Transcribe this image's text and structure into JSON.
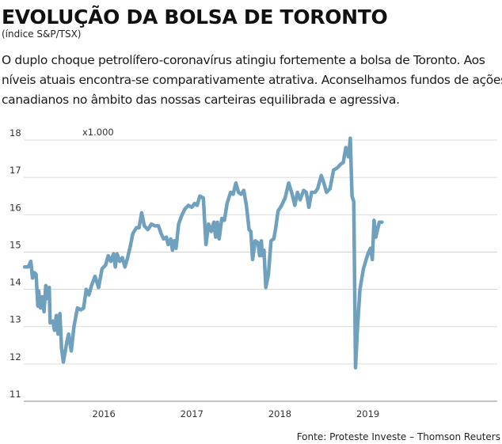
{
  "header": {
    "title": "EVOLUÇÃO DA BOLSA DE TORONTO",
    "subtitle": "(índice S&P/TSX)"
  },
  "lead": {
    "lines": [
      "O duplo choque petrolífero-coronavírus atingiu fortemente a bolsa de Toronto. Aos",
      "níveis atuais encontra-se comparativamente atrativa. Aconselhamos fundos de ações",
      "canadianos no âmbito das nossas carteiras equilibrada e agressiva."
    ]
  },
  "footer": {
    "source": "Fonte: Proteste Investe – Thomson Reuters"
  },
  "colors": {
    "line": "#6fa0be",
    "grid": "#cfcfcf",
    "axis": "#8a8a8a"
  },
  "chart_data": {
    "type": "line",
    "unit_label": "x1.000",
    "ylim": [
      11,
      18
    ],
    "yticks": [
      11,
      12,
      13,
      14,
      15,
      16,
      17,
      18
    ],
    "xlim": [
      2015.09,
      2020.47
    ],
    "xticks": [
      {
        "label": "2016",
        "pos": 2016.0
      },
      {
        "label": "2017",
        "pos": 2017.0
      },
      {
        "label": "2018",
        "pos": 2018.0
      },
      {
        "label": "2019",
        "pos": 2019.0
      }
    ],
    "grid": "horizontal",
    "series": [
      {
        "points": [
          [
            2015.1,
            14.6
          ],
          [
            2015.14,
            14.6
          ],
          [
            2015.17,
            14.75
          ],
          [
            2015.19,
            14.3
          ],
          [
            2015.21,
            14.45
          ],
          [
            2015.23,
            14.4
          ],
          [
            2015.25,
            13.55
          ],
          [
            2015.26,
            13.95
          ],
          [
            2015.28,
            13.5
          ],
          [
            2015.3,
            13.8
          ],
          [
            2015.32,
            13.4
          ],
          [
            2015.34,
            14.1
          ],
          [
            2015.36,
            13.75
          ],
          [
            2015.38,
            14.05
          ],
          [
            2015.39,
            13.1
          ],
          [
            2015.42,
            13.15
          ],
          [
            2015.44,
            12.9
          ],
          [
            2015.46,
            13.3
          ],
          [
            2015.48,
            12.8
          ],
          [
            2015.5,
            13.35
          ],
          [
            2015.52,
            12.4
          ],
          [
            2015.54,
            12.05
          ],
          [
            2015.58,
            12.6
          ],
          [
            2015.6,
            12.8
          ],
          [
            2015.63,
            12.35
          ],
          [
            2015.66,
            13.0
          ],
          [
            2015.7,
            13.5
          ],
          [
            2015.74,
            13.45
          ],
          [
            2015.77,
            13.5
          ],
          [
            2015.8,
            14.0
          ],
          [
            2015.83,
            13.85
          ],
          [
            2015.86,
            14.1
          ],
          [
            2015.9,
            14.35
          ],
          [
            2015.94,
            14.05
          ],
          [
            2015.98,
            14.55
          ],
          [
            2016.02,
            14.65
          ],
          [
            2016.05,
            14.9
          ],
          [
            2016.08,
            14.75
          ],
          [
            2016.11,
            14.95
          ],
          [
            2016.13,
            14.6
          ],
          [
            2016.15,
            14.95
          ],
          [
            2016.18,
            14.75
          ],
          [
            2016.21,
            14.85
          ],
          [
            2016.24,
            14.6
          ],
          [
            2016.27,
            14.85
          ],
          [
            2016.3,
            15.15
          ],
          [
            2016.33,
            15.5
          ],
          [
            2016.37,
            15.65
          ],
          [
            2016.4,
            15.65
          ],
          [
            2016.43,
            16.05
          ],
          [
            2016.46,
            15.7
          ],
          [
            2016.5,
            15.6
          ],
          [
            2016.54,
            15.75
          ],
          [
            2016.58,
            15.7
          ],
          [
            2016.62,
            15.7
          ],
          [
            2016.65,
            15.5
          ],
          [
            2016.68,
            15.35
          ],
          [
            2016.71,
            15.4
          ],
          [
            2016.73,
            15.2
          ],
          [
            2016.76,
            15.35
          ],
          [
            2016.78,
            15.05
          ],
          [
            2016.8,
            15.3
          ],
          [
            2016.82,
            15.1
          ],
          [
            2016.85,
            15.75
          ],
          [
            2016.88,
            15.95
          ],
          [
            2016.92,
            16.15
          ],
          [
            2016.96,
            16.25
          ],
          [
            2017.0,
            16.2
          ],
          [
            2017.03,
            16.3
          ],
          [
            2017.06,
            16.25
          ],
          [
            2017.09,
            16.5
          ],
          [
            2017.13,
            16.45
          ],
          [
            2017.16,
            15.2
          ],
          [
            2017.19,
            15.75
          ],
          [
            2017.22,
            15.55
          ],
          [
            2017.25,
            15.8
          ],
          [
            2017.27,
            15.4
          ],
          [
            2017.29,
            15.8
          ],
          [
            2017.31,
            15.35
          ],
          [
            2017.34,
            15.9
          ],
          [
            2017.37,
            15.85
          ],
          [
            2017.4,
            16.3
          ],
          [
            2017.44,
            16.6
          ],
          [
            2017.47,
            16.55
          ],
          [
            2017.5,
            16.85
          ],
          [
            2017.53,
            16.6
          ],
          [
            2017.56,
            16.55
          ],
          [
            2017.59,
            16.65
          ],
          [
            2017.62,
            16.25
          ],
          [
            2017.65,
            15.6
          ],
          [
            2017.67,
            15.55
          ],
          [
            2017.69,
            14.8
          ],
          [
            2017.72,
            15.3
          ],
          [
            2017.75,
            15.25
          ],
          [
            2017.77,
            14.9
          ],
          [
            2017.79,
            15.3
          ],
          [
            2017.8,
            14.9
          ],
          [
            2017.82,
            15.05
          ],
          [
            2017.84,
            14.05
          ],
          [
            2017.87,
            14.4
          ],
          [
            2017.9,
            15.3
          ],
          [
            2017.93,
            15.35
          ],
          [
            2017.95,
            15.6
          ],
          [
            2017.98,
            16.1
          ],
          [
            2018.02,
            16.25
          ],
          [
            2018.06,
            16.45
          ],
          [
            2018.1,
            16.85
          ],
          [
            2018.14,
            16.55
          ],
          [
            2018.17,
            16.25
          ],
          [
            2018.2,
            16.6
          ],
          [
            2018.23,
            16.4
          ],
          [
            2018.27,
            16.65
          ],
          [
            2018.3,
            16.6
          ],
          [
            2018.33,
            16.2
          ],
          [
            2018.36,
            16.6
          ],
          [
            2018.4,
            16.6
          ],
          [
            2018.43,
            16.7
          ],
          [
            2018.47,
            17.05
          ],
          [
            2018.5,
            16.85
          ],
          [
            2018.53,
            16.6
          ],
          [
            2018.57,
            16.7
          ],
          [
            2018.61,
            17.2
          ],
          [
            2018.65,
            17.25
          ],
          [
            2018.69,
            17.35
          ],
          [
            2018.72,
            17.4
          ],
          [
            2018.75,
            17.8
          ],
          [
            2018.78,
            17.55
          ],
          [
            2018.8,
            18.05
          ],
          [
            2018.82,
            16.5
          ],
          [
            2018.84,
            16.35
          ],
          [
            2018.86,
            11.9
          ],
          [
            2018.88,
            12.9
          ],
          [
            2018.91,
            14.0
          ],
          [
            2018.95,
            14.55
          ],
          [
            2019.0,
            14.95
          ],
          [
            2019.03,
            15.1
          ],
          [
            2019.05,
            14.8
          ],
          [
            2019.07,
            15.85
          ],
          [
            2019.09,
            15.4
          ],
          [
            2019.11,
            15.6
          ],
          [
            2019.13,
            15.8
          ],
          [
            2019.16,
            15.8
          ]
        ]
      }
    ]
  }
}
